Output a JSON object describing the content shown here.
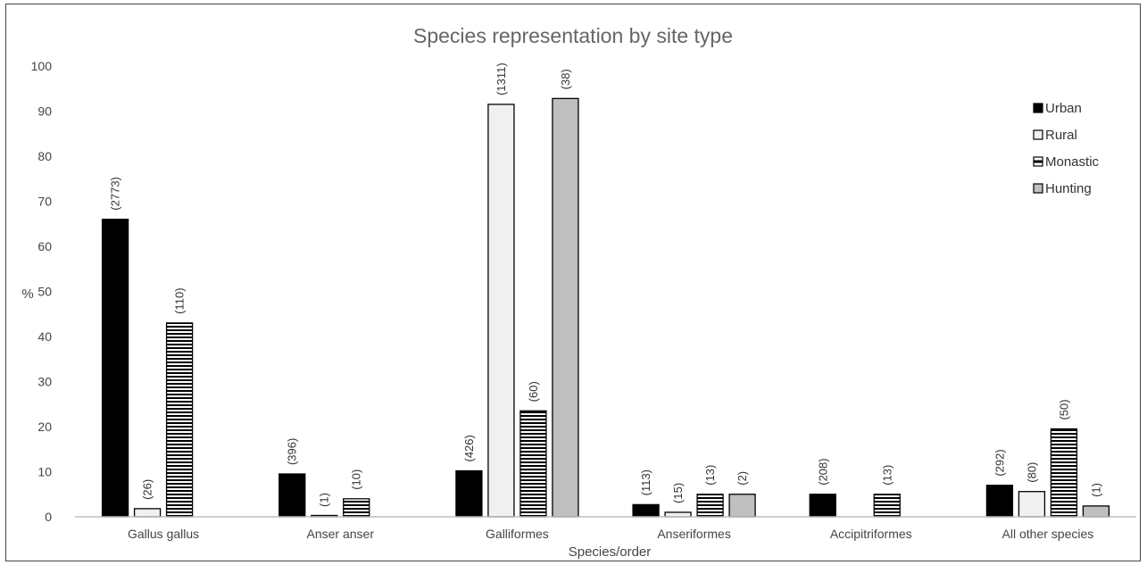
{
  "chart_data": {
    "type": "bar",
    "title": "Species representation by site type",
    "xlabel": "Species/order",
    "ylabel": "%",
    "ylim": [
      0,
      100
    ],
    "yticks": [
      0,
      10,
      20,
      30,
      40,
      50,
      60,
      70,
      80,
      90,
      100
    ],
    "grid": false,
    "legend_position": "top-right",
    "categories": [
      "Gallus gallus",
      "Anser anser",
      "Galliformes",
      "Anseriformes",
      "Accipitriformes",
      "All other species"
    ],
    "series": [
      {
        "name": "Urban",
        "pattern": "solid-black",
        "values": [
          66,
          9.5,
          10.2,
          2.7,
          5,
          7
        ],
        "labels": [
          "(2773)",
          "(396)",
          "(426)",
          "(113)",
          "(208)",
          "(292)"
        ]
      },
      {
        "name": "Rural",
        "pattern": "light-gray",
        "values": [
          1.8,
          0.2,
          91.5,
          1,
          null,
          5.6
        ],
        "labels": [
          "(26)",
          "(1)",
          "(1311)",
          "(15)",
          null,
          "(80)"
        ]
      },
      {
        "name": "Monastic",
        "pattern": "horizontal-stripes",
        "values": [
          43,
          4,
          23.5,
          5,
          5,
          19.5
        ],
        "labels": [
          "(110)",
          "(10)",
          "(60)",
          "(13)",
          "(13)",
          "(50)"
        ]
      },
      {
        "name": "Hunting",
        "pattern": "mid-gray",
        "values": [
          null,
          null,
          92.8,
          5,
          null,
          2.4
        ],
        "labels": [
          null,
          null,
          "(38)",
          "(2)",
          null,
          "(1)"
        ]
      }
    ],
    "colors": {
      "Urban": "#000000",
      "Rural": "#f0f0f0",
      "Monastic": "#000000",
      "Hunting": "#bfbfbf",
      "axis": "#bfbfbf",
      "text": "#444444"
    }
  }
}
